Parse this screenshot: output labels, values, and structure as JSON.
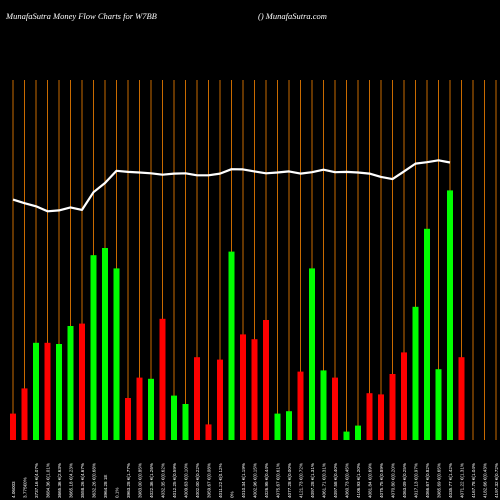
{
  "header": {
    "title": "MunafaSutra  Money Flow  Charts for W7BB",
    "watermark": "() MunafaSutra.com"
  },
  "chart_data": {
    "type": "bar",
    "title": "MunafaSutra  Money Flow  Charts for W7BB",
    "categories": [
      "4.06003",
      "3.775€0%",
      "3737.16 €(4.07%",
      "3684.36 €(1.01%",
      "3665.36 €(2.63%",
      "3665.18 €(4.23%",
      "3558.26 €(4.67%",
      "3632.26 €(0.68%",
      "3964.28 1E",
      "0.1%",
      "3963.28 €(1.77%",
      "3983.00 €(0.85%",
      "4022.36 €(1.26%",
      "4032.35 €(0.62%",
      "4012.25 €(0.59%",
      "4009.63 €(0.10%",
      "4002.00 €(0.22%",
      "3959.67 €(0.08%",
      "4011.22 €(0.12%",
      "0%",
      "4010.34 €(1.19%",
      "4002.96 €(0.15%",
      "4026.95 €(0.44%",
      "4075.67 €(0.61%",
      "4077.28 €(0.00%",
      "4121.73 €(0.72%",
      "4097.28 €(1.31%",
      "4061.71 €(0.31%",
      "4097.58 €(0.40%",
      "4060.73 €(0.45%",
      "4106.93 €(1.20%",
      "4081.84 €(0.69%",
      "4075.75 €(0.89%",
      "4070.80 €(0.20%",
      "4063.09 €(0.25%",
      "4017.13 €(0.97%",
      "4066.67 €(0.82%",
      "3985.69 €(0.65%",
      "4035.77 €(1.42%",
      "4071.22 €(1.31%",
      "4167.78 €(1.04%",
      "4182.66 €(0.43%",
      "4197.32 €(0.72%",
      "4196.28 €(0.00%"
    ],
    "bars": {
      "values": [
        22,
        43,
        81,
        81,
        80,
        95,
        97,
        154,
        160,
        143,
        35,
        52,
        51,
        101,
        37,
        30,
        69,
        13,
        67,
        157,
        88,
        84,
        100,
        22,
        24,
        57,
        143,
        58,
        52,
        7,
        12,
        39,
        38,
        55,
        73,
        111,
        176,
        59,
        208,
        69
      ],
      "colors": [
        "#ff0000",
        "#ff0000",
        "#00ff00",
        "#ff0000",
        "#00ff00",
        "#00ff00",
        "#ff0000",
        "#00ff00",
        "#00ff00",
        "#00ff00",
        "#ff0000",
        "#ff0000",
        "#00ff00",
        "#ff0000",
        "#00ff00",
        "#00ff00",
        "#ff0000",
        "#ff0000",
        "#ff0000",
        "#00ff00",
        "#ff0000",
        "#ff0000",
        "#ff0000",
        "#00ff00",
        "#00ff00",
        "#ff0000",
        "#00ff00",
        "#00ff00",
        "#ff0000",
        "#00ff00",
        "#00ff00",
        "#ff0000",
        "#ff0000",
        "#ff0000",
        "#ff0000",
        "#00ff00",
        "#00ff00",
        "#00ff00",
        "#00ff00",
        "#ff0000"
      ]
    },
    "line": {
      "color": "#ffffff",
      "values": [
        3868,
        3855,
        3844,
        3826,
        3829,
        3840,
        3831,
        3895,
        3928,
        3972,
        3968,
        3966,
        3963,
        3958,
        3962,
        3963,
        3956,
        3956,
        3962,
        3978,
        3977,
        3970,
        3963,
        3966,
        3970,
        3962,
        3967,
        3976,
        3967,
        3968,
        3966,
        3962,
        3950,
        3942,
        3970,
        3998,
        4003,
        4010,
        4002
      ]
    },
    "line_range": [
      3000,
      4300
    ],
    "bar_range": [
      0,
      300
    ],
    "gridline_color": "#c86a00",
    "background": "#000000"
  }
}
